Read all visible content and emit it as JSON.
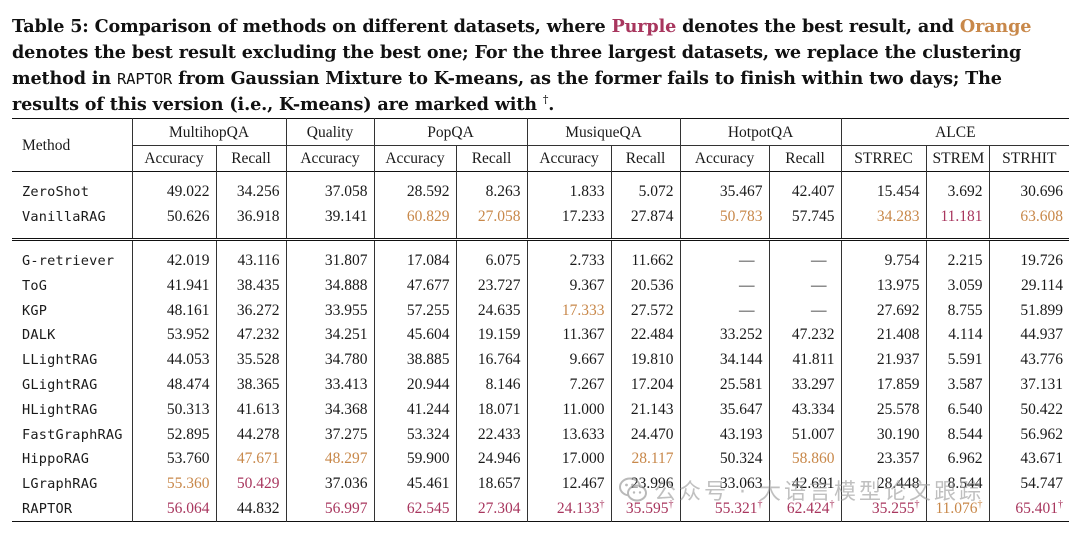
{
  "caption": {
    "label": "Table 5:",
    "part1": " Comparison of methods on different datasets, where ",
    "purple_word": "Purple",
    "part2": " denotes the best result, and ",
    "orange_word": "Orange",
    "part3": " denotes the best result excluding the best one; For the three largest datasets, we replace the clustering method in ",
    "raptor": "RAPTOR",
    "part4": " from Gaussian Mixture to K-means, as the former fails to finish within two days; The results of this version (i.e., K-means) are marked with ",
    "dagger": "†",
    "end": "."
  },
  "colors": {
    "purple": "#a8365e",
    "orange": "#c8884a"
  },
  "table": {
    "method_header": "Method",
    "groups": [
      "MultihopQA",
      "Quality",
      "PopQA",
      "MusiqueQA",
      "HotpotQA",
      "ALCE"
    ],
    "subheaders": [
      "Accuracy",
      "Recall",
      "Accuracy",
      "Accuracy",
      "Recall",
      "Accuracy",
      "Recall",
      "Accuracy",
      "Recall",
      "STRREC",
      "STREM",
      "STRHIT"
    ],
    "rows": [
      {
        "method": "ZeroShot",
        "values": [
          "49.022",
          "34.256",
          "37.058",
          "28.592",
          "8.263",
          "1.833",
          "5.072",
          "35.467",
          "42.407",
          "15.454",
          "3.692",
          "30.696"
        ]
      },
      {
        "method": "VanillaRAG",
        "values": [
          "50.626",
          "36.918",
          "39.141",
          "60.829",
          "27.058",
          "17.233",
          "27.874",
          "50.783",
          "57.745",
          "34.283",
          "11.181",
          "63.608"
        ]
      },
      {
        "method": "G-retriever",
        "values": [
          "42.019",
          "43.116",
          "31.807",
          "17.084",
          "6.075",
          "2.733",
          "11.662",
          "—",
          "—",
          "9.754",
          "2.215",
          "19.726"
        ]
      },
      {
        "method": "ToG",
        "values": [
          "41.941",
          "38.435",
          "34.888",
          "47.677",
          "23.727",
          "9.367",
          "20.536",
          "—",
          "—",
          "13.975",
          "3.059",
          "29.114"
        ]
      },
      {
        "method": "KGP",
        "values": [
          "48.161",
          "36.272",
          "33.955",
          "57.255",
          "24.635",
          "17.333",
          "27.572",
          "—",
          "—",
          "27.692",
          "8.755",
          "51.899"
        ]
      },
      {
        "method": "DALK",
        "values": [
          "53.952",
          "47.232",
          "34.251",
          "45.604",
          "19.159",
          "11.367",
          "22.484",
          "33.252",
          "47.232",
          "21.408",
          "4.114",
          "44.937"
        ]
      },
      {
        "method": "LLightRAG",
        "values": [
          "44.053",
          "35.528",
          "34.780",
          "38.885",
          "16.764",
          "9.667",
          "19.810",
          "34.144",
          "41.811",
          "21.937",
          "5.591",
          "43.776"
        ]
      },
      {
        "method": "GLightRAG",
        "values": [
          "48.474",
          "38.365",
          "33.413",
          "20.944",
          "8.146",
          "7.267",
          "17.204",
          "25.581",
          "33.297",
          "17.859",
          "3.587",
          "37.131"
        ]
      },
      {
        "method": "HLightRAG",
        "values": [
          "50.313",
          "41.613",
          "34.368",
          "41.244",
          "18.071",
          "11.000",
          "21.143",
          "35.647",
          "43.334",
          "25.578",
          "6.540",
          "50.422"
        ]
      },
      {
        "method": "FastGraphRAG",
        "values": [
          "52.895",
          "44.278",
          "37.275",
          "53.324",
          "22.433",
          "13.633",
          "24.470",
          "43.193",
          "51.007",
          "30.190",
          "8.544",
          "56.962"
        ]
      },
      {
        "method": "HippoRAG",
        "values": [
          "53.760",
          "47.671",
          "48.297",
          "59.900",
          "24.946",
          "17.000",
          "28.117",
          "50.324",
          "58.860",
          "23.357",
          "6.962",
          "43.671"
        ]
      },
      {
        "method": "LGraphRAG",
        "values": [
          "55.360",
          "50.429",
          "37.036",
          "45.461",
          "18.657",
          "12.467",
          "23.996",
          "33.063",
          "42.691",
          "28.448",
          "8.544",
          "54.747"
        ]
      },
      {
        "method": "RAPTOR",
        "values": [
          "56.064",
          "44.832",
          "56.997",
          "62.545",
          "27.304",
          "24.133",
          "35.595",
          "55.321",
          "62.424",
          "35.255",
          "11.076",
          "65.401"
        ]
      }
    ]
  },
  "watermark": {
    "text": "公众号 · 大语言模型论文跟踪",
    "icon": "wechat-icon"
  }
}
